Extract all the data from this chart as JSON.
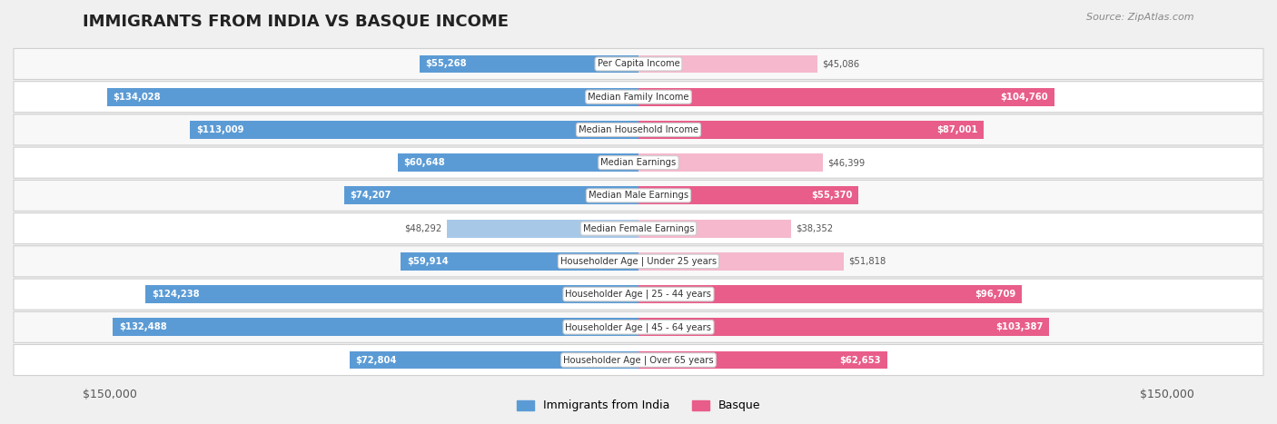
{
  "title": "IMMIGRANTS FROM INDIA VS BASQUE INCOME",
  "source": "Source: ZipAtlas.com",
  "categories": [
    "Per Capita Income",
    "Median Family Income",
    "Median Household Income",
    "Median Earnings",
    "Median Male Earnings",
    "Median Female Earnings",
    "Householder Age | Under 25 years",
    "Householder Age | 25 - 44 years",
    "Householder Age | 45 - 64 years",
    "Householder Age | Over 65 years"
  ],
  "india_values": [
    55268,
    134028,
    113009,
    60648,
    74207,
    48292,
    59914,
    124238,
    132488,
    72804
  ],
  "basque_values": [
    45086,
    104760,
    87001,
    46399,
    55370,
    38352,
    51818,
    96709,
    103387,
    62653
  ],
  "india_color_light": "#a8c8e8",
  "india_color_dark": "#5b9bd5",
  "basque_color_light": "#f5b8cc",
  "basque_color_dark": "#e85d8a",
  "text_outside_color": "#555555",
  "text_inside_color": "#ffffff",
  "max_value": 150000,
  "inside_threshold": 52000,
  "background_color": "#f0f0f0",
  "row_bg_even": "#f8f8f8",
  "row_bg_odd": "#ffffff",
  "label_box_color": "#ffffff",
  "label_box_edge": "#cccccc",
  "axis_label_left": "$150,000",
  "axis_label_right": "$150,000",
  "legend_india": "Immigrants from India",
  "legend_basque": "Basque"
}
